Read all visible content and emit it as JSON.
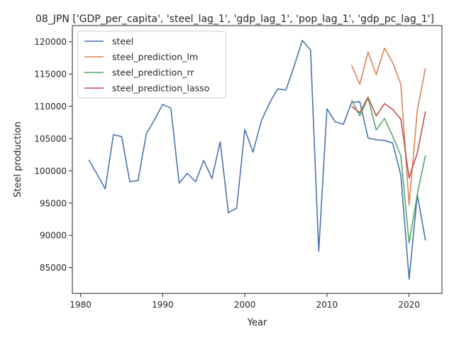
{
  "chart_data": {
    "type": "line",
    "title": "08_JPN ['GDP_per_capita', 'steel_lag_1', 'gdp_lag_1', 'pop_lag_1', 'gdp_pc_lag_1']",
    "xlabel": "Year",
    "ylabel": "Steel production",
    "xlim": [
      1979.0,
      2024.0
    ],
    "ylim": [
      81000,
      122500
    ],
    "xticks": [
      1980,
      1990,
      2000,
      2010,
      2020
    ],
    "yticks": [
      85000,
      90000,
      95000,
      100000,
      105000,
      110000,
      115000,
      120000
    ],
    "grid": false,
    "legend_position": "upper-left",
    "series": [
      {
        "name": "steel",
        "color": "#4c72b0",
        "x": [
          1981,
          1982,
          1983,
          1984,
          1985,
          1986,
          1987,
          1988,
          1989,
          1990,
          1991,
          1992,
          1993,
          1994,
          1995,
          1996,
          1997,
          1998,
          1999,
          2000,
          2001,
          2002,
          2003,
          2004,
          2005,
          2006,
          2007,
          2008,
          2009,
          2010,
          2011,
          2012,
          2013,
          2014,
          2015,
          2016,
          2017,
          2018,
          2019,
          2020,
          2021,
          2022
        ],
        "y": [
          101700,
          99500,
          97200,
          105600,
          105300,
          98300,
          98500,
          105700,
          107900,
          110300,
          109700,
          98100,
          99600,
          98300,
          101600,
          98800,
          104500,
          93500,
          94200,
          106400,
          102900,
          107700,
          110500,
          112700,
          112500,
          116200,
          120200,
          118700,
          87500,
          109600,
          107600,
          107200,
          110600,
          110700,
          105100,
          104800,
          104700,
          104300,
          99300,
          83200,
          96300,
          89200
        ]
      },
      {
        "name": "steel_prediction_lm",
        "color": "#dd8452",
        "x": [
          2013,
          2014,
          2015,
          2016,
          2017,
          2018,
          2019,
          2020,
          2021,
          2022
        ],
        "y": [
          116400,
          113400,
          118400,
          114900,
          119000,
          116800,
          113400,
          94700,
          109400,
          115900
        ]
      },
      {
        "name": "steel_prediction_rr",
        "color": "#55a868",
        "x": [
          2013,
          2014,
          2015,
          2016,
          2017,
          2018,
          2019,
          2020,
          2021,
          2022
        ],
        "y": [
          111000,
          108500,
          111300,
          106300,
          108100,
          105400,
          102300,
          88800,
          96400,
          102400
        ]
      },
      {
        "name": "steel_prediction_lasso",
        "color": "#c44e52",
        "x": [
          2013,
          2014,
          2015,
          2016,
          2017,
          2018,
          2019,
          2020,
          2021,
          2022
        ],
        "y": [
          110000,
          109000,
          111400,
          108500,
          110400,
          109500,
          108000,
          98900,
          102800,
          109200
        ]
      }
    ]
  }
}
